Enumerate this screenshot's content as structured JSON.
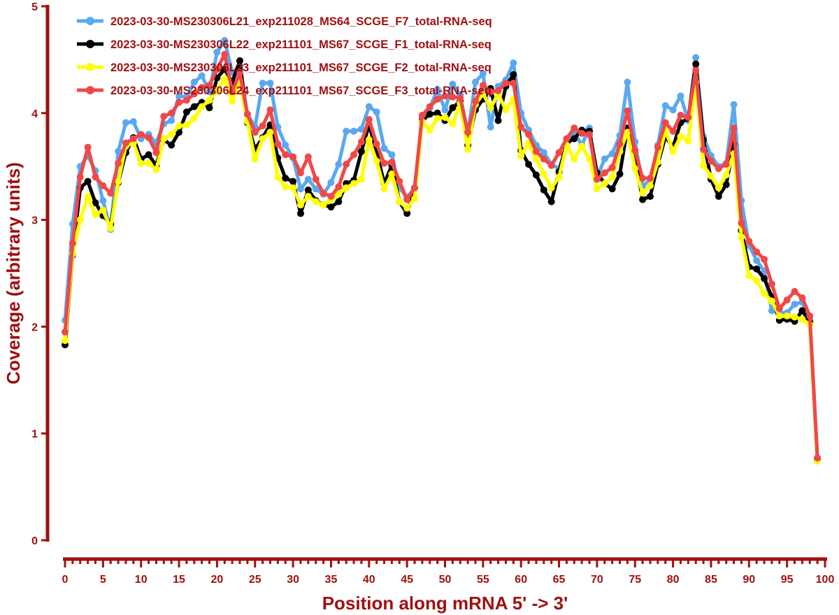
{
  "chart_data": {
    "type": "line",
    "title": "",
    "xlabel": "Position along mRNA 5' -> 3'",
    "ylabel": "Coverage (arbitrary units)",
    "xlim": [
      0,
      100
    ],
    "ylim": [
      0,
      5
    ],
    "x_ticks": [
      0,
      5,
      10,
      15,
      20,
      25,
      30,
      35,
      40,
      45,
      50,
      55,
      60,
      65,
      70,
      75,
      80,
      85,
      90,
      95,
      100
    ],
    "y_ticks": [
      0,
      1,
      2,
      3,
      4,
      5
    ],
    "grid": false,
    "legend_position": "top-left",
    "x": [
      0,
      1,
      2,
      3,
      4,
      5,
      6,
      7,
      8,
      9,
      10,
      11,
      12,
      13,
      14,
      15,
      16,
      17,
      18,
      19,
      20,
      21,
      22,
      23,
      24,
      25,
      26,
      27,
      28,
      29,
      30,
      31,
      32,
      33,
      34,
      35,
      36,
      37,
      38,
      39,
      40,
      41,
      42,
      43,
      44,
      45,
      46,
      47,
      48,
      49,
      50,
      51,
      52,
      53,
      54,
      55,
      56,
      57,
      58,
      59,
      60,
      61,
      62,
      63,
      64,
      65,
      66,
      67,
      68,
      69,
      70,
      71,
      72,
      73,
      74,
      75,
      76,
      77,
      78,
      79,
      80,
      81,
      82,
      83,
      84,
      85,
      86,
      87,
      88,
      89,
      90,
      91,
      92,
      93,
      94,
      95,
      96,
      97,
      98,
      99
    ],
    "series": [
      {
        "name": "2023-03-30-MS230306L21_exp211028_MS64_SCGE_F7_total-RNA-seq",
        "color": "#5aa8f0",
        "values": [
          2.06,
          2.96,
          3.5,
          3.6,
          3.46,
          3.18,
          2.91,
          3.64,
          3.91,
          3.92,
          3.76,
          3.8,
          3.72,
          3.9,
          3.93,
          4.16,
          4.15,
          4.29,
          4.35,
          4.2,
          4.57,
          4.68,
          4.38,
          4.44,
          3.99,
          3.87,
          4.28,
          4.28,
          3.87,
          3.7,
          3.58,
          3.29,
          3.38,
          3.29,
          3.24,
          3.35,
          3.52,
          3.83,
          3.83,
          3.85,
          4.06,
          4.01,
          3.67,
          3.61,
          3.3,
          3.21,
          3.3,
          3.95,
          4.05,
          4.22,
          4.03,
          4.27,
          4.17,
          3.81,
          4.29,
          4.37,
          3.87,
          4.25,
          4.31,
          4.47,
          4.0,
          3.84,
          3.7,
          3.63,
          3.52,
          3.48,
          3.68,
          3.82,
          3.7,
          3.86,
          3.4,
          3.57,
          3.62,
          3.79,
          4.29,
          3.73,
          3.32,
          3.37,
          3.7,
          4.07,
          4.03,
          4.16,
          3.93,
          4.52,
          3.78,
          3.6,
          3.5,
          3.53,
          4.08,
          3.18,
          2.76,
          2.62,
          2.52,
          2.15,
          2.13,
          2.13,
          2.21,
          2.23,
          2.07,
          0.76
        ]
      },
      {
        "name": "2023-03-30-MS230306L22_exp211101_MS67_SCGE_F1_total-RNA-seq",
        "color": "#000000",
        "values": [
          1.83,
          2.67,
          3.3,
          3.36,
          3.16,
          3.04,
          2.96,
          3.35,
          3.63,
          3.77,
          3.57,
          3.61,
          3.51,
          3.75,
          3.7,
          3.82,
          4.01,
          4.06,
          4.1,
          4.05,
          4.33,
          4.41,
          4.29,
          4.49,
          3.91,
          3.66,
          3.77,
          3.89,
          3.58,
          3.39,
          3.36,
          3.06,
          3.28,
          3.18,
          3.14,
          3.12,
          3.17,
          3.34,
          3.37,
          3.64,
          3.89,
          3.64,
          3.34,
          3.51,
          3.17,
          3.06,
          3.3,
          3.93,
          3.99,
          4.0,
          3.93,
          4.05,
          4.11,
          3.7,
          4.03,
          4.13,
          4.23,
          3.93,
          4.25,
          4.36,
          3.65,
          3.52,
          3.42,
          3.28,
          3.17,
          3.45,
          3.72,
          3.76,
          3.84,
          3.83,
          3.44,
          3.34,
          3.29,
          3.43,
          3.86,
          3.57,
          3.19,
          3.22,
          3.52,
          3.78,
          3.68,
          3.91,
          3.95,
          4.46,
          3.75,
          3.38,
          3.22,
          3.33,
          3.71,
          2.9,
          2.56,
          2.54,
          2.45,
          2.28,
          2.06,
          2.07,
          2.05,
          2.15,
          2.04,
          0.75
        ]
      },
      {
        "name": "2023-03-30-MS230306L23_exp211101_MS67_SCGE_F2_total-RNA-seq",
        "color": "#ffff00",
        "values": [
          1.87,
          2.68,
          3.0,
          3.22,
          3.05,
          3.09,
          2.92,
          3.36,
          3.69,
          3.72,
          3.53,
          3.53,
          3.47,
          3.76,
          3.8,
          3.88,
          3.89,
          3.95,
          4.06,
          4.12,
          4.21,
          4.32,
          4.11,
          4.3,
          3.92,
          3.57,
          3.76,
          3.82,
          3.4,
          3.31,
          3.3,
          3.14,
          3.22,
          3.17,
          3.14,
          3.19,
          3.24,
          3.3,
          3.34,
          3.38,
          3.75,
          3.55,
          3.29,
          3.43,
          3.17,
          3.11,
          3.2,
          3.92,
          3.84,
          3.95,
          3.96,
          3.9,
          4.09,
          3.66,
          4.08,
          4.18,
          4.05,
          4.18,
          4.03,
          4.13,
          3.6,
          3.72,
          3.57,
          3.43,
          3.3,
          3.4,
          3.7,
          3.57,
          3.69,
          3.57,
          3.29,
          3.34,
          3.4,
          3.64,
          3.82,
          3.48,
          3.25,
          3.32,
          3.54,
          3.84,
          3.64,
          3.78,
          3.74,
          4.29,
          3.51,
          3.41,
          3.3,
          3.42,
          3.62,
          2.84,
          2.48,
          2.43,
          2.31,
          2.24,
          2.1,
          2.1,
          2.09,
          2.07,
          2.02,
          0.74
        ]
      },
      {
        "name": "2023-03-30-MS230306L24_exp211101_MS67_SCGE_F3_total-RNA-seq",
        "color": "#f04848",
        "values": [
          1.95,
          2.78,
          3.4,
          3.68,
          3.4,
          3.32,
          3.25,
          3.53,
          3.72,
          3.76,
          3.8,
          3.77,
          3.63,
          3.97,
          4.0,
          4.1,
          4.12,
          4.18,
          4.24,
          4.26,
          4.41,
          4.55,
          4.2,
          4.38,
          3.99,
          3.82,
          3.88,
          4.03,
          3.71,
          3.61,
          3.59,
          3.44,
          3.59,
          3.38,
          3.25,
          3.22,
          3.31,
          3.52,
          3.61,
          3.73,
          3.94,
          3.71,
          3.53,
          3.54,
          3.36,
          3.19,
          3.3,
          3.98,
          4.06,
          4.13,
          4.16,
          4.15,
          4.14,
          3.82,
          4.11,
          4.26,
          4.2,
          4.21,
          4.28,
          4.28,
          3.87,
          3.8,
          3.64,
          3.57,
          3.51,
          3.63,
          3.76,
          3.86,
          3.81,
          3.8,
          3.38,
          3.44,
          3.49,
          3.71,
          4.02,
          3.65,
          3.39,
          3.39,
          3.68,
          3.91,
          3.83,
          3.98,
          3.96,
          4.4,
          3.66,
          3.55,
          3.48,
          3.52,
          3.86,
          2.97,
          2.8,
          2.7,
          2.63,
          2.4,
          2.17,
          2.25,
          2.33,
          2.27,
          2.1,
          0.77
        ]
      }
    ]
  }
}
